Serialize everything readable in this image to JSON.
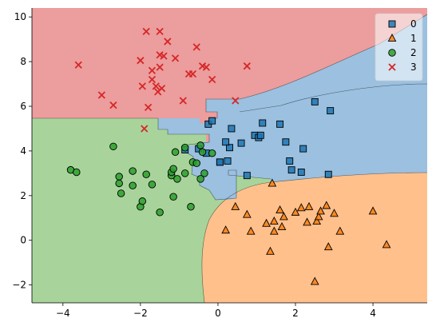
{
  "chart_data": {
    "type": "scatter",
    "title": "",
    "xlabel": "",
    "ylabel": "",
    "xlim": [
      -4.8,
      5.4
    ],
    "ylim": [
      -2.8,
      10.4
    ],
    "xticks": [
      -4,
      -2,
      0,
      2,
      4
    ],
    "yticks": [
      -2,
      0,
      2,
      4,
      6,
      8,
      10
    ],
    "grid": false,
    "legend_position": "top-right",
    "regions": [
      {
        "class": "0",
        "color": "#9bc0e0"
      },
      {
        "class": "1",
        "color": "#ffc08c"
      },
      {
        "class": "2",
        "color": "#a8d49c"
      },
      {
        "class": "3",
        "color": "#ec9d9d"
      }
    ],
    "series": [
      {
        "name": "0",
        "marker": "square",
        "color": "#1f77b4",
        "points": [
          [
            0.05,
            3.5
          ],
          [
            0.25,
            3.55
          ],
          [
            0.35,
            5.0
          ],
          [
            0.3,
            4.15
          ],
          [
            0.2,
            4.4
          ],
          [
            0.6,
            4.35
          ],
          [
            0.75,
            2.9
          ],
          [
            0.95,
            4.7
          ],
          [
            1.05,
            4.6
          ],
          [
            1.1,
            4.7
          ],
          [
            1.15,
            5.25
          ],
          [
            1.6,
            5.2
          ],
          [
            1.75,
            4.4
          ],
          [
            1.85,
            3.55
          ],
          [
            1.9,
            3.15
          ],
          [
            2.15,
            3.05
          ],
          [
            2.2,
            4.1
          ],
          [
            2.5,
            6.2
          ],
          [
            2.9,
            5.8
          ],
          [
            2.85,
            2.95
          ],
          [
            -0.25,
            5.2
          ],
          [
            -0.15,
            5.35
          ],
          [
            -0.3,
            3.9
          ],
          [
            -0.5,
            4.1
          ],
          [
            -0.85,
            4.05
          ],
          [
            0.05,
            3.5
          ]
        ]
      },
      {
        "name": "1",
        "marker": "triangle",
        "color": "#ff7f0e",
        "points": [
          [
            0.2,
            0.45
          ],
          [
            0.45,
            1.5
          ],
          [
            0.75,
            1.15
          ],
          [
            0.85,
            0.4
          ],
          [
            1.25,
            0.75
          ],
          [
            1.35,
            -0.5
          ],
          [
            1.4,
            2.55
          ],
          [
            1.45,
            0.4
          ],
          [
            1.45,
            0.85
          ],
          [
            1.6,
            1.35
          ],
          [
            1.65,
            0.6
          ],
          [
            1.7,
            1.05
          ],
          [
            2.0,
            1.25
          ],
          [
            2.15,
            1.45
          ],
          [
            2.3,
            0.8
          ],
          [
            2.35,
            1.5
          ],
          [
            2.5,
            -1.85
          ],
          [
            2.55,
            0.85
          ],
          [
            2.6,
            1.05
          ],
          [
            2.65,
            1.3
          ],
          [
            2.8,
            1.55
          ],
          [
            2.85,
            -0.3
          ],
          [
            3.0,
            1.2
          ],
          [
            3.15,
            0.4
          ],
          [
            4.0,
            1.3
          ],
          [
            4.35,
            -0.2
          ]
        ]
      },
      {
        "name": "2",
        "marker": "circle",
        "color": "#2ca02c",
        "points": [
          [
            -3.8,
            3.15
          ],
          [
            -3.65,
            3.05
          ],
          [
            -2.7,
            4.2
          ],
          [
            -2.55,
            2.55
          ],
          [
            -2.55,
            2.85
          ],
          [
            -2.5,
            2.1
          ],
          [
            -2.2,
            2.45
          ],
          [
            -2.2,
            3.1
          ],
          [
            -2.0,
            1.5
          ],
          [
            -1.95,
            1.75
          ],
          [
            -1.85,
            2.95
          ],
          [
            -1.7,
            2.5
          ],
          [
            -1.5,
            1.25
          ],
          [
            -1.2,
            2.9
          ],
          [
            -1.2,
            3.05
          ],
          [
            -1.15,
            3.2
          ],
          [
            -1.15,
            1.95
          ],
          [
            -1.1,
            3.95
          ],
          [
            -1.05,
            2.75
          ],
          [
            -0.85,
            4.15
          ],
          [
            -0.85,
            3.0
          ],
          [
            -0.7,
            1.5
          ],
          [
            -0.65,
            3.5
          ],
          [
            -0.55,
            3.45
          ],
          [
            -0.45,
            2.75
          ],
          [
            -0.45,
            4.25
          ],
          [
            -0.4,
            3.95
          ],
          [
            -0.35,
            3.0
          ],
          [
            -0.15,
            3.9
          ]
        ]
      },
      {
        "name": "3",
        "marker": "x",
        "color": "#d62728",
        "points": [
          [
            -3.6,
            7.85
          ],
          [
            -3.0,
            6.5
          ],
          [
            -2.7,
            6.05
          ],
          [
            -2.0,
            8.05
          ],
          [
            -1.9,
            5.0
          ],
          [
            -1.85,
            9.35
          ],
          [
            -1.8,
            5.95
          ],
          [
            -1.7,
            7.6
          ],
          [
            -1.7,
            7.2
          ],
          [
            -1.6,
            6.9
          ],
          [
            -1.55,
            6.65
          ],
          [
            -1.5,
            9.35
          ],
          [
            -1.5,
            8.3
          ],
          [
            -1.5,
            7.75
          ],
          [
            -1.45,
            6.8
          ],
          [
            -1.4,
            8.25
          ],
          [
            -1.3,
            8.9
          ],
          [
            -1.1,
            8.15
          ],
          [
            -0.9,
            6.25
          ],
          [
            -0.75,
            7.45
          ],
          [
            -0.65,
            7.45
          ],
          [
            -0.55,
            8.65
          ],
          [
            -0.4,
            7.8
          ],
          [
            -0.3,
            7.75
          ],
          [
            -0.15,
            7.2
          ],
          [
            0.45,
            6.25
          ],
          [
            0.75,
            7.8
          ],
          [
            -1.95,
            6.9
          ]
        ]
      }
    ]
  }
}
